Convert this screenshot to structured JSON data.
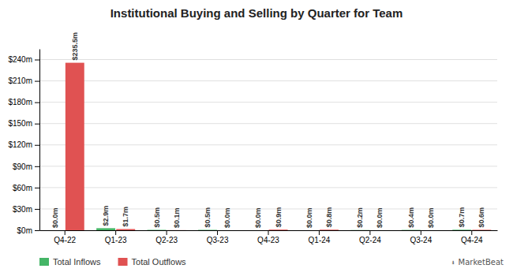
{
  "chart_data": {
    "type": "bar",
    "title": "Institutional Buying and Selling by Quarter for Team",
    "categories": [
      "Q4-22",
      "Q1-23",
      "Q2-23",
      "Q3-23",
      "Q4-23",
      "Q1-24",
      "Q2-24",
      "Q3-24",
      "Q4-24"
    ],
    "series": [
      {
        "name": "Total Inflows",
        "color": "#44b566",
        "values": [
          0.0,
          2.9,
          0.5,
          0.5,
          0.0,
          0.0,
          0.2,
          0.4,
          0.7
        ],
        "value_labels": [
          "$0.0m",
          "$2.9m",
          "$0.5m",
          "$0.5m",
          "$0.0m",
          "$0.0m",
          "$0.2m",
          "$0.4m",
          "$0.7m"
        ]
      },
      {
        "name": "Total Outflows",
        "color": "#e05252",
        "values": [
          235.5,
          1.7,
          0.1,
          0.0,
          0.9,
          0.8,
          0.0,
          0.0,
          0.6
        ],
        "value_labels": [
          "$235.5m",
          "$1.7m",
          "$0.1m",
          "$0.0m",
          "$0.9m",
          "$0.8m",
          "$0.0m",
          "$0.0m",
          "$0.6m"
        ]
      }
    ],
    "ylim": [
      0,
      255
    ],
    "yticks": [
      {
        "value": 0,
        "label": "$0m"
      },
      {
        "value": 30,
        "label": "$30m"
      },
      {
        "value": 60,
        "label": "$60m"
      },
      {
        "value": 90,
        "label": "$90m"
      },
      {
        "value": 120,
        "label": "$120m"
      },
      {
        "value": 150,
        "label": "$150m"
      },
      {
        "value": 180,
        "label": "$180m"
      },
      {
        "value": 210,
        "label": "$210m"
      },
      {
        "value": 240,
        "label": "$240m"
      }
    ],
    "grid": true,
    "legend": "bottom",
    "data_labels": true,
    "annotations": [
      "⍖",
      "MarketBeat"
    ]
  }
}
